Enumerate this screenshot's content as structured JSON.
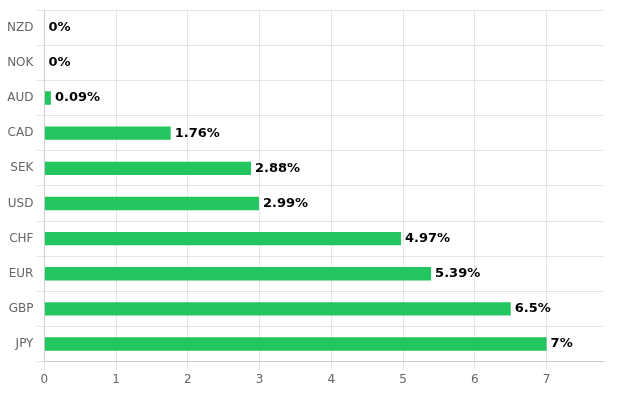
{
  "chart_data": {
    "type": "bar",
    "orientation": "horizontal",
    "categories": [
      "JPY",
      "GBP",
      "EUR",
      "CHF",
      "USD",
      "SEK",
      "CAD",
      "AUD",
      "NOK",
      "NZD"
    ],
    "values": [
      7.0,
      6.5,
      5.39,
      4.97,
      2.99,
      2.88,
      1.76,
      0.09,
      0.0,
      0.0
    ],
    "value_labels": [
      "7%",
      "6.5%",
      "5.39%",
      "4.97%",
      "2.99%",
      "2.88%",
      "1.76%",
      "0.09%",
      "0%",
      "0%"
    ],
    "color": "#22c55e",
    "xlim": [
      0,
      7.8
    ],
    "xticks": [
      0,
      1,
      2,
      3,
      4,
      5,
      6,
      7
    ],
    "grid": true,
    "data_labels": true
  }
}
